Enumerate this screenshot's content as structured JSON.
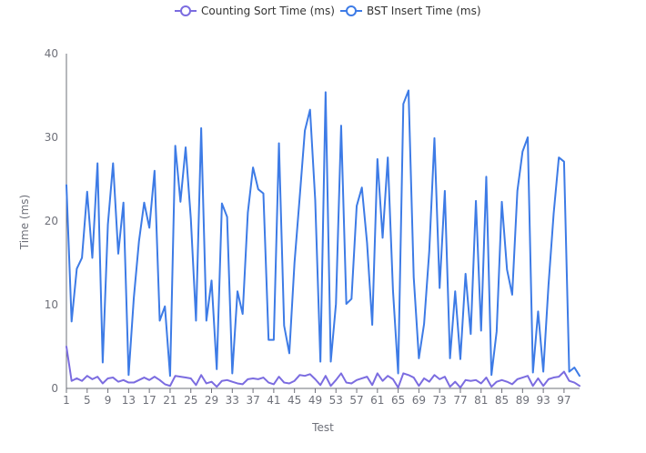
{
  "chart_data": {
    "type": "line",
    "xlabel": "Test",
    "ylabel": "Time (ms)",
    "ylim": [
      0,
      40
    ],
    "yticks": [
      0,
      10,
      20,
      30,
      40
    ],
    "x": [
      1,
      2,
      3,
      4,
      5,
      6,
      7,
      8,
      9,
      10,
      11,
      12,
      13,
      14,
      15,
      16,
      17,
      18,
      19,
      20,
      21,
      22,
      23,
      24,
      25,
      26,
      27,
      28,
      29,
      30,
      31,
      32,
      33,
      34,
      35,
      36,
      37,
      38,
      39,
      40,
      41,
      42,
      43,
      44,
      45,
      46,
      47,
      48,
      49,
      50,
      51,
      52,
      53,
      54,
      55,
      56,
      57,
      58,
      59,
      60,
      61,
      62,
      63,
      64,
      65,
      66,
      67,
      68,
      69,
      70,
      71,
      72,
      73,
      74,
      75,
      76,
      77,
      78,
      79,
      80,
      81,
      82,
      83,
      84,
      85,
      86,
      87,
      88,
      89,
      90,
      91,
      92,
      93,
      94,
      95,
      96,
      97,
      98,
      99,
      100
    ],
    "x_tick_labels": [
      "1",
      "5",
      "9",
      "13",
      "17",
      "21",
      "25",
      "29",
      "33",
      "37",
      "41",
      "45",
      "49",
      "53",
      "57",
      "61",
      "65",
      "69",
      "73",
      "77",
      "81",
      "85",
      "89",
      "93",
      "97"
    ],
    "legend_position": "top",
    "grid": false,
    "series": [
      {
        "name": "Counting Sort Time (ms)",
        "color": "#7b6ce0",
        "values": [
          5.0,
          0.9,
          1.2,
          0.9,
          1.5,
          1.1,
          1.4,
          0.6,
          1.2,
          1.3,
          0.8,
          1.0,
          0.7,
          0.7,
          1.0,
          1.3,
          1.0,
          1.4,
          1.0,
          0.5,
          0.3,
          1.5,
          1.4,
          1.3,
          1.2,
          0.4,
          1.6,
          0.6,
          0.8,
          0.2,
          0.9,
          1.0,
          0.8,
          0.6,
          0.5,
          1.1,
          1.2,
          1.1,
          1.3,
          0.7,
          0.5,
          1.4,
          0.7,
          0.6,
          0.9,
          1.6,
          1.5,
          1.7,
          1.1,
          0.4,
          1.5,
          0.3,
          1.0,
          1.8,
          0.7,
          0.6,
          1.0,
          1.2,
          1.4,
          0.4,
          1.8,
          0.9,
          1.5,
          1.1,
          0.1,
          1.8,
          1.6,
          1.3,
          0.3,
          1.2,
          0.8,
          1.6,
          1.1,
          1.4,
          0.2,
          0.8,
          0.1,
          1.0,
          0.9,
          1.0,
          0.6,
          1.3,
          0.2,
          0.8,
          1.0,
          0.8,
          0.5,
          1.1,
          1.3,
          1.5,
          0.3,
          1.2,
          0.3,
          1.1,
          1.3,
          1.4,
          2.0,
          0.9,
          0.7,
          0.3
        ]
      },
      {
        "name": "BST Insert Time (ms)",
        "color": "#3d7be6",
        "values": [
          24.3,
          8.0,
          14.3,
          15.6,
          23.5,
          15.6,
          26.9,
          3.1,
          19.6,
          26.9,
          16.1,
          22.2,
          1.6,
          10.8,
          17.6,
          22.2,
          19.2,
          26.0,
          8.1,
          9.8,
          1.5,
          29.0,
          22.3,
          28.8,
          20.3,
          8.1,
          31.1,
          8.1,
          12.9,
          2.3,
          22.1,
          20.5,
          1.8,
          11.6,
          8.9,
          21.0,
          26.4,
          23.8,
          23.3,
          5.8,
          5.8,
          29.3,
          7.5,
          4.2,
          15.0,
          22.8,
          30.8,
          33.3,
          22.5,
          3.2,
          35.4,
          3.2,
          10.1,
          31.4,
          10.1,
          10.7,
          21.8,
          24.0,
          17.4,
          7.6,
          27.4,
          18.0,
          27.6,
          11.7,
          1.8,
          34.0,
          35.6,
          13.3,
          3.6,
          7.7,
          16.4,
          29.9,
          12.0,
          23.6,
          3.6,
          11.6,
          3.5,
          13.7,
          6.5,
          22.4,
          6.9,
          25.3,
          1.6,
          6.8,
          22.3,
          14.2,
          11.2,
          23.6,
          28.3,
          30.0,
          1.9,
          9.2,
          2.0,
          12.3,
          20.9,
          27.6,
          27.1,
          2.0,
          2.5,
          1.5
        ]
      }
    ]
  }
}
